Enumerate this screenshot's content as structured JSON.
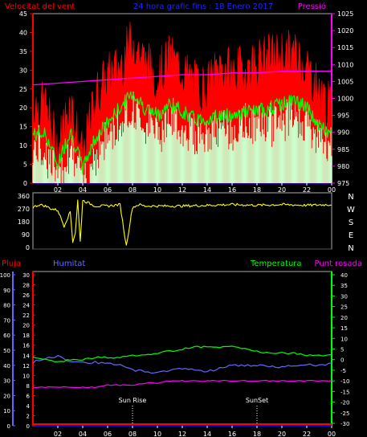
{
  "header": {
    "left_label": "Velocitat del vent",
    "center_label": "24 hora grafic fins : 18 Enero 2017",
    "right_label": "Pressió"
  },
  "colors": {
    "background": "#000000",
    "gust": "#ff0000",
    "avg_wind": "#00ff00",
    "wind_low": "#ccffcc",
    "pressure": "#ff00ff",
    "direction": "#ffff00",
    "humidity": "#6666ff",
    "temperature": "#00ff00",
    "dewpoint": "#ff00ff",
    "rain": "#ff0000",
    "axis_red": "#ff0000",
    "axis_magenta": "#ff00ff",
    "axis_blue": "#6666ff",
    "axis_green": "#00ff00",
    "time_axis": "#0000cc",
    "tick_text": "#ffffff"
  },
  "x_axis": {
    "tick_labels": [
      "02",
      "04",
      "06",
      "08",
      "10",
      "12",
      "14",
      "16",
      "18",
      "20",
      "22",
      "00"
    ]
  },
  "chart_data": [
    {
      "type": "line",
      "id": "wind",
      "x_hours": "0..24 (24 hours ending 00)",
      "left_axis": {
        "label": "Velocitat del vent",
        "ticks": [
          0,
          5,
          10,
          15,
          20,
          25,
          30,
          35,
          40,
          45
        ],
        "ylim": [
          0,
          45
        ]
      },
      "right_axis": {
        "label": "Pressió",
        "ticks": [
          975,
          980,
          985,
          990,
          995,
          1000,
          1005,
          1010,
          1015,
          1020,
          1025
        ],
        "ylim": [
          975,
          1025
        ]
      },
      "series": [
        {
          "name": "Gust",
          "x": [
            0,
            1,
            2,
            3,
            4,
            5,
            6,
            7,
            8,
            9,
            10,
            11,
            12,
            13,
            14,
            15,
            16,
            17,
            18,
            19,
            20,
            21,
            22,
            23,
            24
          ],
          "values": [
            21,
            20,
            9,
            22,
            6,
            23,
            28,
            31,
            38,
            32,
            28,
            33,
            30,
            26,
            25,
            31,
            29,
            30,
            32,
            33,
            34,
            34,
            31,
            24,
            19
          ]
        },
        {
          "name": "Average wind",
          "x": [
            0,
            1,
            2,
            3,
            4,
            5,
            6,
            7,
            8,
            9,
            10,
            11,
            12,
            13,
            14,
            15,
            16,
            17,
            18,
            19,
            20,
            21,
            22,
            23,
            24
          ],
          "values": [
            13,
            13,
            5,
            14,
            4,
            12,
            16,
            20,
            24,
            20,
            18,
            21,
            19,
            17,
            17,
            18,
            18,
            19,
            19,
            20,
            21,
            22,
            20,
            15,
            13
          ]
        },
        {
          "name": "Pressió",
          "x": [
            0,
            2,
            4,
            6,
            8,
            10,
            12,
            14,
            16,
            18,
            20,
            22,
            24
          ],
          "values": [
            1004,
            1004.5,
            1005,
            1005.5,
            1006,
            1006.5,
            1007,
            1007,
            1007.5,
            1007.5,
            1008,
            1008,
            1008
          ]
        }
      ]
    },
    {
      "type": "line",
      "id": "direction",
      "right_labels": [
        "N",
        "W",
        "S",
        "E",
        "N"
      ],
      "left_axis": {
        "ticks": [
          0,
          90,
          180,
          270,
          360
        ],
        "ylim": [
          0,
          360
        ]
      },
      "series": [
        {
          "name": "Direcció",
          "x": [
            0,
            0.5,
            1,
            1.5,
            2,
            2.5,
            3,
            3.2,
            3.4,
            3.6,
            3.8,
            4,
            5,
            6,
            7,
            7.5,
            8,
            8.5,
            9,
            10,
            12,
            14,
            16,
            18,
            20,
            22,
            24
          ],
          "values": [
            280,
            300,
            290,
            270,
            260,
            150,
            250,
            40,
            100,
            330,
            40,
            330,
            290,
            290,
            300,
            10,
            280,
            300,
            290,
            290,
            290,
            295,
            300,
            295,
            300,
            295,
            300
          ]
        }
      ]
    },
    {
      "type": "line",
      "id": "climate",
      "headers": [
        "Pluja",
        "Humitat",
        "Temperatura",
        "Punt rosada"
      ],
      "axes": {
        "humidity": {
          "ticks": [
            0,
            10,
            20,
            30,
            40,
            50,
            60,
            70,
            80,
            90,
            100
          ],
          "ylim": [
            0,
            100
          ]
        },
        "rain": {
          "ticks": [
            0,
            2,
            4,
            6,
            8,
            10,
            12,
            14,
            16,
            18,
            20,
            22,
            24,
            26,
            28,
            30
          ],
          "ylim": [
            0,
            30
          ]
        },
        "temperature": {
          "ticks": [
            -30,
            -25,
            -20,
            -15,
            -10,
            -5,
            0,
            5,
            10,
            15,
            20,
            25,
            30,
            35,
            40
          ],
          "ylim": [
            -30,
            40
          ]
        }
      },
      "annotations": [
        {
          "label": "Sun Rise",
          "hour": 8.0
        },
        {
          "label": "SunSet",
          "hour": 18.0
        }
      ],
      "series": [
        {
          "name": "Humitat",
          "x": [
            0,
            1,
            2,
            3,
            4,
            5,
            6,
            7,
            8,
            9,
            10,
            11,
            12,
            13,
            14,
            15,
            16,
            17,
            18,
            19,
            20,
            21,
            22,
            23,
            24
          ],
          "values": [
            42,
            45,
            46,
            43,
            42,
            42,
            41,
            40,
            37,
            36,
            35,
            37,
            38,
            37,
            36,
            38,
            40,
            40,
            40,
            39,
            39,
            40,
            41,
            40,
            41
          ]
        },
        {
          "name": "Temperatura",
          "x": [
            0,
            1,
            2,
            3,
            4,
            5,
            6,
            7,
            8,
            9,
            10,
            11,
            12,
            13,
            14,
            15,
            16,
            17,
            18,
            19,
            20,
            21,
            22,
            23,
            24
          ],
          "values": [
            1,
            0,
            -1,
            0,
            0,
            1,
            1,
            1,
            2,
            2,
            3,
            4,
            5,
            6,
            6,
            6,
            6,
            5,
            4,
            3,
            3,
            3,
            2,
            2,
            2
          ]
        },
        {
          "name": "Punt rosada",
          "x": [
            0,
            1,
            2,
            3,
            4,
            5,
            6,
            7,
            8,
            9,
            10,
            11,
            12,
            13,
            14,
            15,
            16,
            17,
            18,
            19,
            20,
            21,
            22,
            23,
            24
          ],
          "values": [
            -13,
            -13,
            -13,
            -13,
            -13,
            -13,
            -12,
            -12,
            -12,
            -11,
            -11,
            -10,
            -10,
            -10,
            -10,
            -10,
            -10,
            -10,
            -10,
            -10,
            -10,
            -10,
            -10,
            -10,
            -10
          ]
        },
        {
          "name": "Pluja",
          "x": [
            0,
            24
          ],
          "values": [
            0,
            0
          ]
        }
      ]
    }
  ]
}
